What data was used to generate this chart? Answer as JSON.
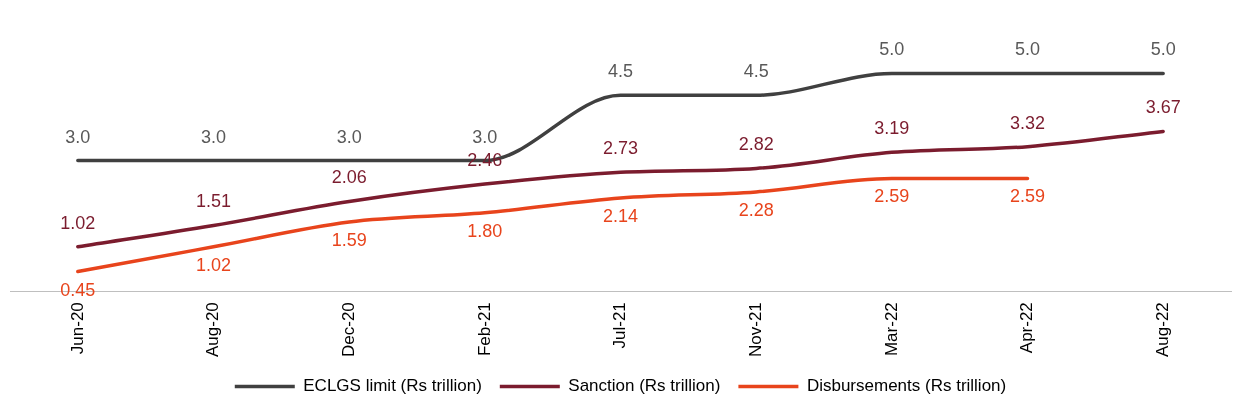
{
  "chart_data": {
    "type": "line",
    "categories": [
      "Jun-20",
      "Aug-20",
      "Dec-20",
      "Feb-21",
      "Jul-21",
      "Nov-21",
      "Mar-22",
      "Apr-22",
      "Aug-22"
    ],
    "series": [
      {
        "name": "ECLGS limit (Rs trillion)",
        "color": "#404040",
        "values": [
          3.0,
          3.0,
          3.0,
          3.0,
          4.5,
          4.5,
          5.0,
          5.0,
          5.0
        ],
        "value_labels": [
          "3.0",
          "3.0",
          "3.0",
          "3.0",
          "4.5",
          "4.5",
          "5.0",
          "5.0",
          "5.0"
        ]
      },
      {
        "name": "Sanction (Rs trillion)",
        "color": "#7b1c2e",
        "values": [
          1.02,
          1.51,
          2.06,
          2.46,
          2.73,
          2.82,
          3.19,
          3.32,
          3.67
        ]
      },
      {
        "name": "Disbursements (Rs trillion)",
        "color": "#e8441c",
        "values": [
          0.45,
          1.02,
          1.59,
          1.8,
          2.14,
          2.28,
          2.59,
          2.59,
          null
        ],
        "value_labels": [
          "0.45",
          "1.02",
          "1.59",
          "1.80",
          "2.14",
          "2.28",
          "2.59",
          "2.59",
          null
        ]
      }
    ],
    "data_labels": true,
    "legend": "bottom",
    "grid": false,
    "marker": "none",
    "line_style": "solid"
  }
}
